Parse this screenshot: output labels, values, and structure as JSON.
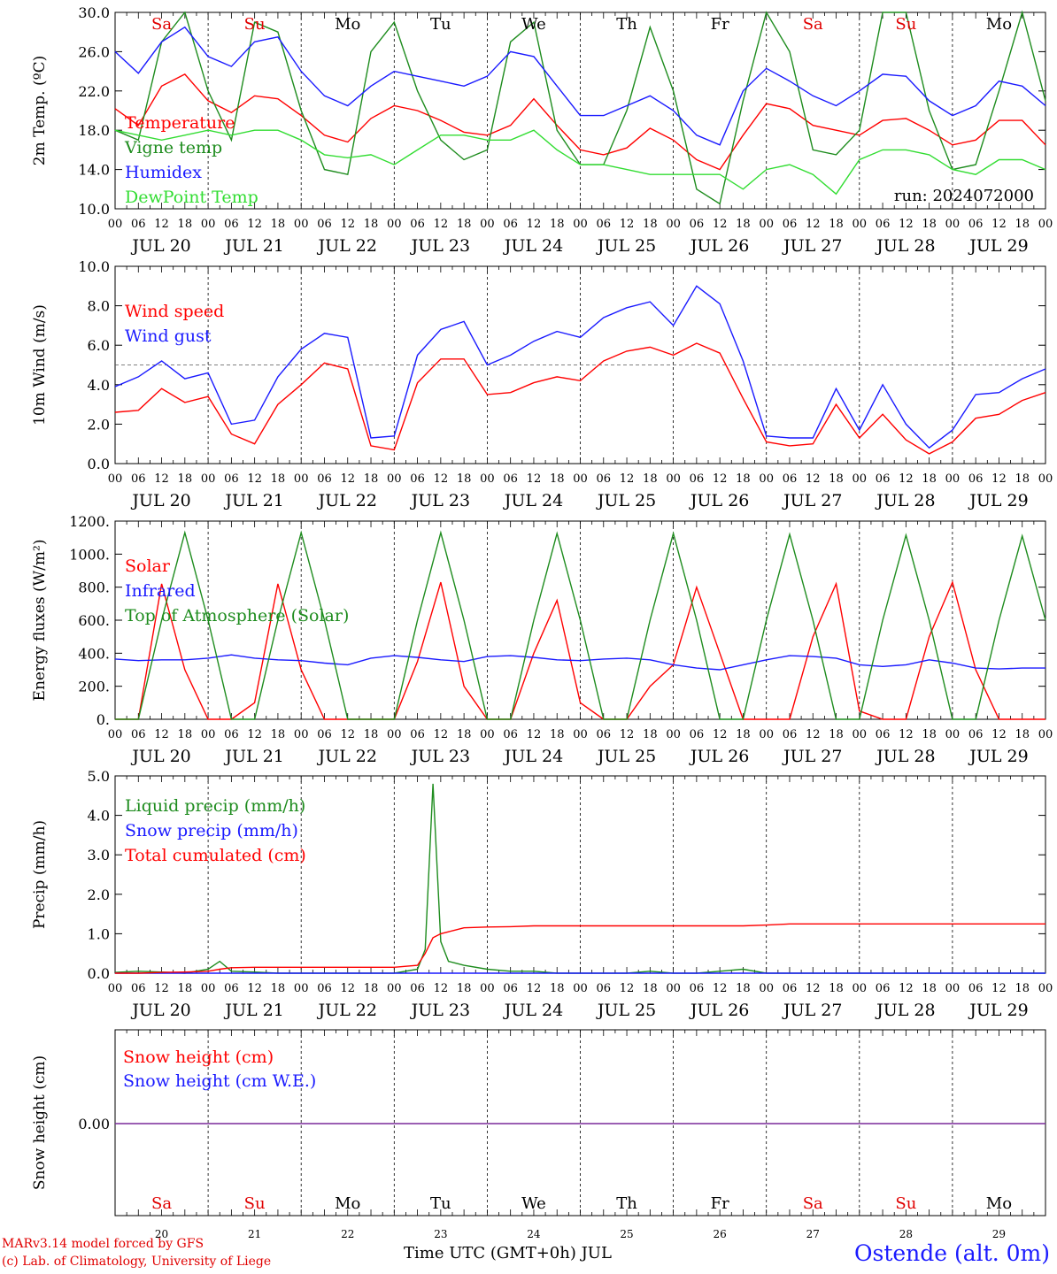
{
  "footer": {
    "model_line": "MARv3.14 model forced by GFS",
    "lab_line": "(c) Lab. of Climatology, University of Liege",
    "x_title": "Time UTC (GMT+0h) JUL",
    "station": "Ostende (alt. 0m)"
  },
  "chart_data": [
    {
      "type": "line",
      "ylabel": "2m Temp. (ºC)",
      "ylim": [
        10,
        30
      ],
      "yticks": [
        "10.0",
        "14.0",
        "18.0",
        "22.0",
        "26.0",
        "30.0"
      ],
      "annotation": "run: 2024072000",
      "day_labels": [
        "Sa",
        "Su",
        "Mo",
        "Tu",
        "We",
        "Th",
        "Fr",
        "Sa",
        "Su",
        "Mo"
      ],
      "day_colors": [
        "#e00000",
        "#e00000",
        "#000000",
        "#000000",
        "#000000",
        "#000000",
        "#000000",
        "#e00000",
        "#e00000",
        "#000000"
      ],
      "x_hours": [
        0,
        6,
        12,
        18,
        24,
        30,
        36,
        42,
        48,
        54,
        60,
        66,
        72,
        78,
        84,
        90,
        96,
        102,
        108,
        114,
        120,
        126,
        132,
        138,
        144,
        150,
        156,
        162,
        168,
        174,
        180,
        186,
        192,
        198,
        204,
        210,
        216,
        222,
        228,
        234,
        240
      ],
      "series": [
        {
          "name": "Temperature",
          "color": "#ff0000",
          "values": [
            20.2,
            18.5,
            22.5,
            23.7,
            21.0,
            19.8,
            21.5,
            21.2,
            19.5,
            17.5,
            16.8,
            19.2,
            20.5,
            20.0,
            19.0,
            17.8,
            17.5,
            18.5,
            21.2,
            18.5,
            16.0,
            15.5,
            16.2,
            18.2,
            17.0,
            15.0,
            14.0,
            17.5,
            20.7,
            20.2,
            18.5,
            18.0,
            17.5,
            19.0,
            19.2,
            18.0,
            16.5,
            17.0,
            19.0,
            19.0,
            16.5
          ]
        },
        {
          "name": "Vigne temp",
          "color": "#1e8c1e",
          "values": [
            18.0,
            17.0,
            27.0,
            30.0,
            22.0,
            17.0,
            29.0,
            28.0,
            20.0,
            14.0,
            13.5,
            26.0,
            29.0,
            22.0,
            17.0,
            15.0,
            16.0,
            27.0,
            29.0,
            18.0,
            14.5,
            14.5,
            20.0,
            28.5,
            22.0,
            12.0,
            10.5,
            21.0,
            30.0,
            26.0,
            16.0,
            15.5,
            18.0,
            30.0,
            30.0,
            20.0,
            14.0,
            14.5,
            22.0,
            30.0,
            21.0
          ]
        },
        {
          "name": "Humidex",
          "color": "#1a1aff",
          "values": [
            26.0,
            23.8,
            27.0,
            28.5,
            25.5,
            24.5,
            27.0,
            27.5,
            24.0,
            21.5,
            20.5,
            22.5,
            24.0,
            23.5,
            23.0,
            22.5,
            23.5,
            26.0,
            25.5,
            22.5,
            19.5,
            19.5,
            20.5,
            21.5,
            20.0,
            17.5,
            16.5,
            22.0,
            24.3,
            23.0,
            21.5,
            20.5,
            22.0,
            23.7,
            23.5,
            21.0,
            19.5,
            20.5,
            23.0,
            22.5,
            20.5
          ]
        },
        {
          "name": "DewPoint Temp",
          "color": "#33dd33",
          "values": [
            18.0,
            17.5,
            17.0,
            17.5,
            18.0,
            17.5,
            18.0,
            18.0,
            17.0,
            15.5,
            15.2,
            15.5,
            14.5,
            16.0,
            17.5,
            17.5,
            17.0,
            17.0,
            18.0,
            16.0,
            14.5,
            14.5,
            14.0,
            13.5,
            13.5,
            13.5,
            13.5,
            12.0,
            14.0,
            14.5,
            13.5,
            11.5,
            15.0,
            16.0,
            16.0,
            15.5,
            14.0,
            13.5,
            15.0,
            15.0,
            14.0
          ]
        }
      ]
    },
    {
      "type": "line",
      "ylabel": "10m Wind (m/s)",
      "ylim": [
        0,
        10
      ],
      "yticks": [
        "0.0",
        "2.0",
        "4.0",
        "6.0",
        "8.0",
        "10.0"
      ],
      "reference_line": 5.0,
      "x_hours": [
        0,
        6,
        12,
        18,
        24,
        30,
        36,
        42,
        48,
        54,
        60,
        66,
        72,
        78,
        84,
        90,
        96,
        102,
        108,
        114,
        120,
        126,
        132,
        138,
        144,
        150,
        156,
        162,
        168,
        174,
        180,
        186,
        192,
        198,
        204,
        210,
        216,
        222,
        228,
        234,
        240
      ],
      "series": [
        {
          "name": "Wind speed",
          "color": "#ff0000",
          "values": [
            2.6,
            2.7,
            3.8,
            3.1,
            3.4,
            1.5,
            1.0,
            3.0,
            4.0,
            5.1,
            4.8,
            0.9,
            0.7,
            4.1,
            5.3,
            5.3,
            3.5,
            3.6,
            4.1,
            4.4,
            4.2,
            5.2,
            5.7,
            5.9,
            5.5,
            6.1,
            5.6,
            3.3,
            1.1,
            0.9,
            1.0,
            3.0,
            1.3,
            2.5,
            1.2,
            0.5,
            1.1,
            2.3,
            2.5,
            3.2,
            3.6
          ]
        },
        {
          "name": "Wind gust",
          "color": "#1a1aff",
          "values": [
            3.9,
            4.4,
            5.2,
            4.3,
            4.6,
            2.0,
            2.2,
            4.4,
            5.8,
            6.6,
            6.4,
            1.3,
            1.4,
            5.5,
            6.8,
            7.2,
            5.0,
            5.5,
            6.2,
            6.7,
            6.4,
            7.4,
            7.9,
            8.2,
            7.0,
            9.0,
            8.1,
            5.2,
            1.4,
            1.3,
            1.3,
            3.8,
            1.7,
            4.0,
            2.0,
            0.8,
            1.7,
            3.5,
            3.6,
            4.3,
            4.8
          ]
        }
      ]
    },
    {
      "type": "line",
      "ylabel": "Energy fluxes (W/m²)",
      "ylim": [
        0,
        1200
      ],
      "yticks": [
        "0.",
        "200.",
        "400.",
        "600.",
        "800.",
        "1000.",
        "1200."
      ],
      "x_hours": [
        0,
        6,
        12,
        18,
        24,
        30,
        36,
        42,
        48,
        54,
        60,
        66,
        72,
        78,
        84,
        90,
        96,
        102,
        108,
        114,
        120,
        126,
        132,
        138,
        144,
        150,
        156,
        162,
        168,
        174,
        180,
        186,
        192,
        198,
        204,
        210,
        216,
        222,
        228,
        234,
        240
      ],
      "series": [
        {
          "name": "Solar",
          "color": "#ff0000",
          "values": [
            0,
            0,
            820,
            300,
            0,
            0,
            100,
            820,
            300,
            0,
            0,
            0,
            0,
            350,
            830,
            200,
            0,
            0,
            400,
            720,
            100,
            0,
            0,
            200,
            330,
            800,
            400,
            0,
            0,
            0,
            500,
            820,
            50,
            0,
            0,
            500,
            830,
            300,
            0,
            0,
            0
          ]
        },
        {
          "name": "Infrared",
          "color": "#1a1aff",
          "values": [
            365,
            355,
            360,
            360,
            370,
            390,
            370,
            360,
            355,
            340,
            330,
            370,
            385,
            375,
            360,
            350,
            380,
            385,
            375,
            360,
            355,
            365,
            370,
            360,
            330,
            310,
            300,
            330,
            360,
            385,
            380,
            370,
            330,
            320,
            330,
            360,
            340,
            310,
            305,
            310,
            310
          ]
        },
        {
          "name": "Top of Atmosphere (Solar)",
          "color": "#1e8c1e",
          "values": [
            0,
            0,
            600,
            1130,
            600,
            0,
            0,
            600,
            1130,
            600,
            0,
            0,
            0,
            600,
            1130,
            600,
            0,
            0,
            600,
            1125,
            600,
            0,
            0,
            600,
            1125,
            600,
            0,
            0,
            600,
            1120,
            600,
            0,
            0,
            600,
            1115,
            600,
            0,
            0,
            600,
            1110,
            600
          ]
        }
      ]
    },
    {
      "type": "line",
      "ylabel": "Precip (mm/h)",
      "ylim": [
        0,
        5
      ],
      "yticks": [
        "0.0",
        "1.0",
        "2.0",
        "3.0",
        "4.0",
        "5.0"
      ],
      "x_hours": [
        0,
        6,
        12,
        18,
        24,
        27,
        30,
        36,
        42,
        48,
        54,
        60,
        66,
        72,
        78,
        80,
        82,
        84,
        86,
        88,
        90,
        96,
        102,
        108,
        114,
        120,
        126,
        132,
        138,
        144,
        150,
        156,
        162,
        168,
        174,
        180,
        186,
        192,
        198,
        204,
        210,
        216,
        222,
        228,
        234,
        240
      ],
      "series": [
        {
          "name": "Liquid precip (mm/h)",
          "color": "#1e8c1e",
          "values": [
            0.02,
            0.05,
            0.03,
            0.0,
            0.1,
            0.3,
            0.05,
            0.03,
            0.0,
            0.0,
            0.0,
            0.0,
            0.0,
            0.0,
            0.1,
            0.6,
            4.8,
            0.8,
            0.3,
            0.25,
            0.2,
            0.1,
            0.05,
            0.05,
            0.0,
            0.0,
            0.0,
            0.0,
            0.05,
            0.0,
            0.0,
            0.05,
            0.1,
            0.0,
            0.0,
            0.0,
            0.0,
            0.0,
            0.0,
            0.0,
            0.0,
            0.0,
            0.0,
            0.0,
            0.0,
            0.0
          ]
        },
        {
          "name": "Snow precip (mm/h)",
          "color": "#1a1aff",
          "values": [
            0,
            0,
            0,
            0,
            0,
            0,
            0,
            0,
            0,
            0,
            0,
            0,
            0,
            0,
            0,
            0,
            0,
            0,
            0,
            0,
            0,
            0,
            0,
            0,
            0,
            0,
            0,
            0,
            0,
            0,
            0,
            0,
            0,
            0,
            0,
            0,
            0,
            0,
            0,
            0,
            0,
            0,
            0,
            0,
            0,
            0
          ]
        },
        {
          "name": "Total cumulated (cm)",
          "color": "#ff0000",
          "values": [
            0.0,
            0.0,
            0.02,
            0.03,
            0.05,
            0.1,
            0.14,
            0.15,
            0.15,
            0.15,
            0.15,
            0.15,
            0.15,
            0.15,
            0.2,
            0.5,
            0.9,
            1.0,
            1.05,
            1.1,
            1.15,
            1.17,
            1.18,
            1.2,
            1.2,
            1.2,
            1.2,
            1.2,
            1.2,
            1.2,
            1.2,
            1.2,
            1.2,
            1.22,
            1.25,
            1.25,
            1.25,
            1.25,
            1.25,
            1.25,
            1.25,
            1.25,
            1.25,
            1.25,
            1.25,
            1.25
          ]
        }
      ]
    },
    {
      "type": "line",
      "ylabel": "Snow height (cm)",
      "yticks": [
        "0.00"
      ],
      "series": [
        {
          "name": "Snow height (cm)",
          "color": "#ff0000",
          "values": [
            0,
            0
          ]
        },
        {
          "name": "Snow height (cm W.E.)",
          "color": "#1a1aff",
          "values": [
            0,
            0
          ]
        }
      ],
      "combined_color": "#7a2a9a",
      "day_labels": [
        "Sa",
        "Su",
        "Mo",
        "Tu",
        "We",
        "Th",
        "Fr",
        "Sa",
        "Su",
        "Mo"
      ],
      "day_colors": [
        "#e00000",
        "#e00000",
        "#000000",
        "#000000",
        "#000000",
        "#000000",
        "#000000",
        "#e00000",
        "#e00000",
        "#000000"
      ],
      "day_numbers": [
        "20",
        "21",
        "22",
        "23",
        "24",
        "25",
        "26",
        "27",
        "28",
        "29"
      ]
    }
  ],
  "x_axis": {
    "hour_labels": [
      "00",
      "06",
      "12",
      "18"
    ],
    "end_label": "00",
    "date_labels": [
      "JUL 20",
      "JUL 21",
      "JUL 22",
      "JUL 23",
      "JUL 24",
      "JUL 25",
      "JUL 26",
      "JUL 27",
      "JUL 28",
      "JUL 29"
    ]
  }
}
